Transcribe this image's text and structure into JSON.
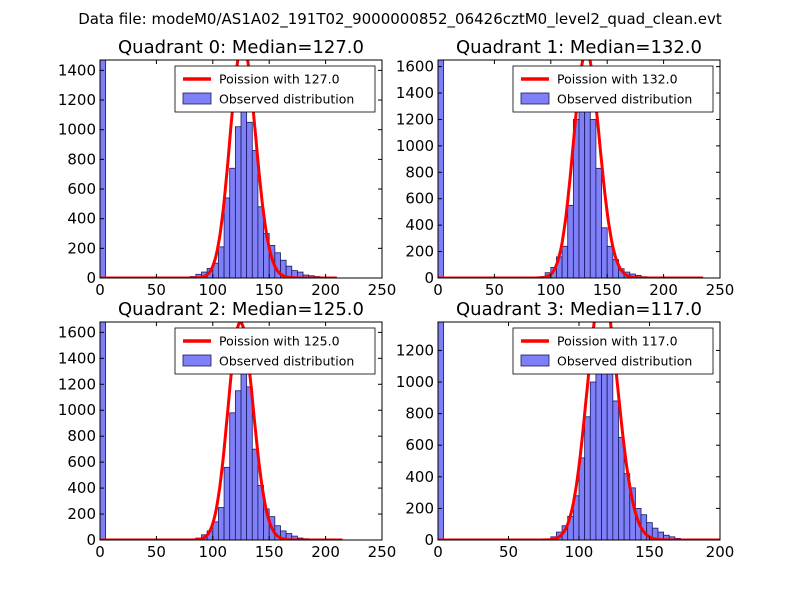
{
  "chart_data": {
    "suptitle": "Data file: modeM0/AS1A02_191T02_9000000852_06426cztM0_level2_quad_clean.evt",
    "colors": {
      "bar_fill": "#7f7ff7",
      "bar_edge": "#1a1a5e",
      "poisson": "#ff0000"
    },
    "legend_entries": {
      "observed": "Observed distribution"
    },
    "legend_location": "top-right",
    "panels": [
      {
        "title": "Quadrant 0: Median=127.0",
        "type": "bar",
        "poisson_label": "Poission with 127.0",
        "median": 127,
        "xlim": [
          0,
          250
        ],
        "xticks": [
          0,
          50,
          100,
          150,
          200,
          250
        ],
        "ylim": [
          0,
          1470
        ],
        "yticks": [
          0,
          200,
          400,
          600,
          800,
          1000,
          1200,
          1400
        ],
        "bin_width": 5,
        "bins": [
          [
            0,
            1470
          ],
          [
            80,
            10
          ],
          [
            85,
            25
          ],
          [
            90,
            40
          ],
          [
            95,
            65
          ],
          [
            100,
            100
          ],
          [
            105,
            210
          ],
          [
            110,
            540
          ],
          [
            115,
            740
          ],
          [
            120,
            1020
          ],
          [
            125,
            1300
          ],
          [
            130,
            1050
          ],
          [
            135,
            860
          ],
          [
            140,
            480
          ],
          [
            145,
            300
          ],
          [
            150,
            220
          ],
          [
            155,
            170
          ],
          [
            160,
            120
          ],
          [
            165,
            80
          ],
          [
            170,
            50
          ],
          [
            175,
            40
          ],
          [
            180,
            20
          ],
          [
            185,
            15
          ],
          [
            190,
            10
          ],
          [
            195,
            5
          ]
        ],
        "poisson_xmax": 210
      },
      {
        "title": "Quadrant 1: Median=132.0",
        "type": "bar",
        "poisson_label": "Poission with 132.0",
        "median": 132,
        "xlim": [
          0,
          250
        ],
        "xticks": [
          0,
          50,
          100,
          150,
          200,
          250
        ],
        "ylim": [
          0,
          1650
        ],
        "yticks": [
          0,
          200,
          400,
          600,
          800,
          1000,
          1200,
          1400,
          1600
        ],
        "bin_width": 5,
        "bins": [
          [
            0,
            1650
          ],
          [
            90,
            10
          ],
          [
            95,
            40
          ],
          [
            100,
            80
          ],
          [
            105,
            160
          ],
          [
            110,
            240
          ],
          [
            115,
            550
          ],
          [
            120,
            1200
          ],
          [
            125,
            1430
          ],
          [
            130,
            1540
          ],
          [
            135,
            1200
          ],
          [
            140,
            830
          ],
          [
            145,
            380
          ],
          [
            150,
            240
          ],
          [
            155,
            140
          ],
          [
            160,
            70
          ],
          [
            165,
            45
          ],
          [
            170,
            30
          ],
          [
            175,
            20
          ],
          [
            180,
            10
          ],
          [
            185,
            5
          ]
        ],
        "poisson_xmax": 235
      },
      {
        "title": "Quadrant 2: Median=125.0",
        "type": "bar",
        "poisson_label": "Poission with 125.0",
        "median": 125,
        "xlim": [
          0,
          250
        ],
        "xticks": [
          0,
          50,
          100,
          150,
          200,
          250
        ],
        "ylim": [
          0,
          1680
        ],
        "yticks": [
          0,
          200,
          400,
          600,
          800,
          1000,
          1200,
          1400,
          1600
        ],
        "bin_width": 5,
        "bins": [
          [
            0,
            1680
          ],
          [
            85,
            15
          ],
          [
            90,
            40
          ],
          [
            95,
            70
          ],
          [
            100,
            140
          ],
          [
            105,
            250
          ],
          [
            110,
            560
          ],
          [
            115,
            980
          ],
          [
            120,
            1150
          ],
          [
            125,
            1510
          ],
          [
            130,
            1180
          ],
          [
            135,
            700
          ],
          [
            140,
            420
          ],
          [
            145,
            240
          ],
          [
            150,
            180
          ],
          [
            155,
            110
          ],
          [
            160,
            70
          ],
          [
            165,
            50
          ],
          [
            170,
            30
          ],
          [
            175,
            15
          ],
          [
            180,
            10
          ],
          [
            185,
            5
          ]
        ],
        "poisson_xmax": 215
      },
      {
        "title": "Quadrant 3: Median=117.0",
        "type": "bar",
        "poisson_label": "Poission with 117.0",
        "median": 117,
        "xlim": [
          0,
          200
        ],
        "xticks": [
          0,
          50,
          100,
          150,
          200
        ],
        "ylim": [
          0,
          1380
        ],
        "yticks": [
          0,
          200,
          400,
          600,
          800,
          1000,
          1200
        ],
        "bin_width": 4,
        "bins": [
          [
            0,
            1380
          ],
          [
            80,
            20
          ],
          [
            84,
            50
          ],
          [
            88,
            90
          ],
          [
            92,
            150
          ],
          [
            96,
            280
          ],
          [
            100,
            520
          ],
          [
            104,
            780
          ],
          [
            108,
            1000
          ],
          [
            112,
            1180
          ],
          [
            116,
            1280
          ],
          [
            120,
            1100
          ],
          [
            124,
            880
          ],
          [
            128,
            650
          ],
          [
            132,
            420
          ],
          [
            136,
            330
          ],
          [
            140,
            200
          ],
          [
            144,
            160
          ],
          [
            148,
            110
          ],
          [
            152,
            75
          ],
          [
            156,
            50
          ],
          [
            160,
            30
          ],
          [
            164,
            20
          ],
          [
            168,
            10
          ]
        ],
        "poisson_xmax": 200
      }
    ]
  }
}
